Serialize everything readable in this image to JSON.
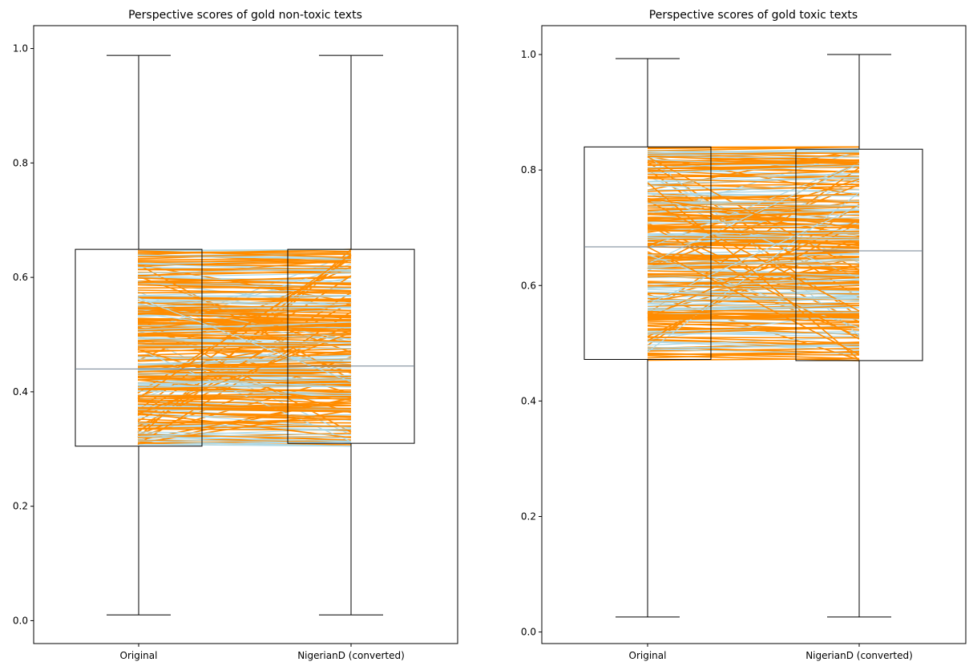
{
  "colors": {
    "box": "#000000",
    "median": "#708090",
    "pair_line_a": "#add8e6",
    "pair_line_b": "#ff8c00",
    "background": "#ffffff"
  },
  "chart_data": [
    {
      "type": "box",
      "title": "Perspective scores of gold non-toxic texts",
      "categories": [
        "Original",
        "NigerianD (converted)"
      ],
      "xlabel": "",
      "ylabel": "",
      "ylim": [
        -0.04,
        1.04
      ],
      "yticks": [
        0.0,
        0.2,
        0.4,
        0.6,
        0.8,
        1.0
      ],
      "ytick_labels": [
        "0.0",
        "0.2",
        "0.4",
        "0.6",
        "0.8",
        "1.0"
      ],
      "boxes": [
        {
          "name": "Original",
          "whisker_low": 0.01,
          "q1": 0.305,
          "median": 0.44,
          "q3": 0.649,
          "whisker_high": 0.988
        },
        {
          "name": "NigerianD (converted)",
          "whisker_low": 0.01,
          "q1": 0.31,
          "median": 0.445,
          "q3": 0.649,
          "whisker_high": 0.988
        }
      ],
      "paired_lines": {
        "count": 300,
        "y_range": [
          0.305,
          0.649
        ],
        "seed": 7
      }
    },
    {
      "type": "box",
      "title": "Perspective scores of gold toxic texts",
      "categories": [
        "Original",
        "NigerianD (converted)"
      ],
      "xlabel": "",
      "ylabel": "",
      "ylim": [
        -0.02,
        1.05
      ],
      "yticks": [
        0.0,
        0.2,
        0.4,
        0.6,
        0.8,
        1.0
      ],
      "ytick_labels": [
        "0.0",
        "0.2",
        "0.4",
        "0.6",
        "0.8",
        "1.0"
      ],
      "boxes": [
        {
          "name": "Original",
          "whisker_low": 0.026,
          "q1": 0.472,
          "median": 0.667,
          "q3": 0.84,
          "whisker_high": 0.993
        },
        {
          "name": "NigerianD (converted)",
          "whisker_low": 0.026,
          "q1": 0.47,
          "median": 0.66,
          "q3": 0.836,
          "whisker_high": 1.0
        }
      ],
      "paired_lines": {
        "count": 300,
        "y_range": [
          0.47,
          0.84
        ],
        "seed": 13
      }
    }
  ]
}
